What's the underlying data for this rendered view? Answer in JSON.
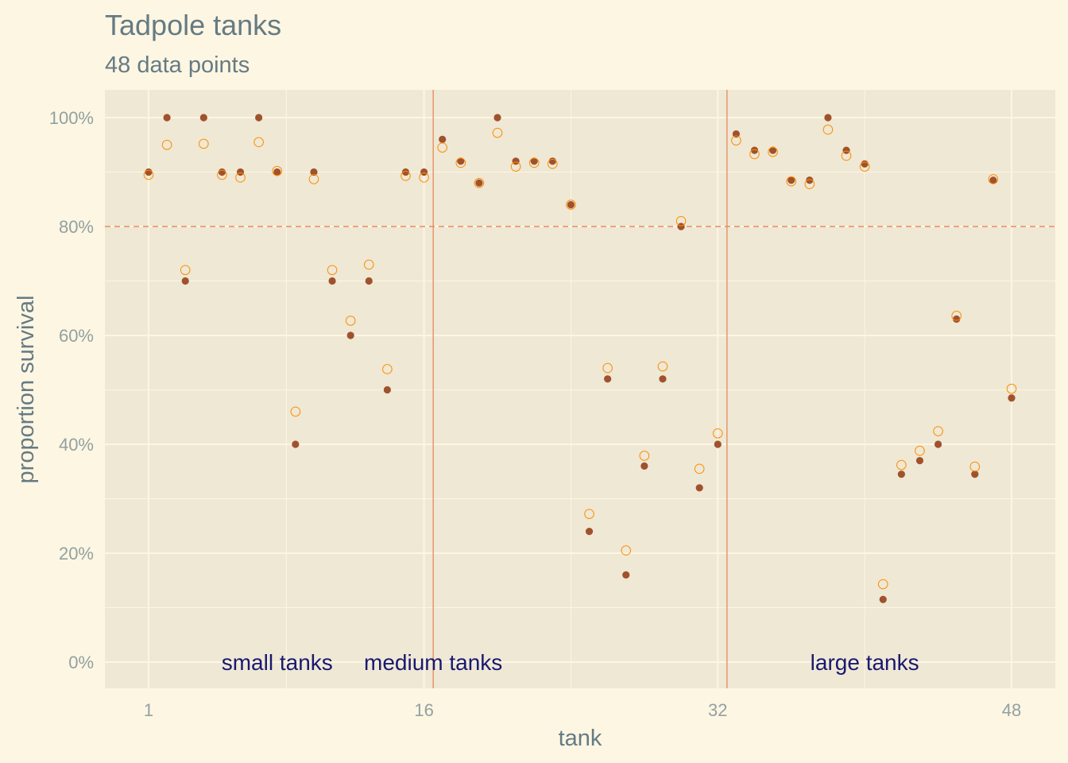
{
  "chart_data": {
    "type": "scatter",
    "title": "Tadpole tanks",
    "subtitle": "48 data points",
    "xlabel": "tank",
    "ylabel": "proportion survival",
    "xlim": [
      1,
      48
    ],
    "ylim": [
      0,
      1
    ],
    "x_ticks": [
      1,
      16,
      32,
      48
    ],
    "x_tick_labels": [
      "1",
      "16",
      "32",
      "48"
    ],
    "y_ticks": [
      0,
      0.2,
      0.4,
      0.6,
      0.8,
      1.0
    ],
    "y_tick_labels": [
      "0%",
      "20%",
      "40%",
      "60%",
      "80%",
      "100%"
    ],
    "grid": true,
    "reference_line": {
      "y": 0.8,
      "style": "dashed",
      "color": "#e8875a"
    },
    "group_dividers": [
      16.5,
      32.5
    ],
    "annotations": [
      {
        "text": "small tanks",
        "x": 8,
        "y": 0
      },
      {
        "text": "medium tanks",
        "x": 16.5,
        "y": 0
      },
      {
        "text": "large tanks",
        "x": 40,
        "y": 0
      }
    ],
    "series": [
      {
        "marker": "filled",
        "color": "#a0522d",
        "values": [
          0.9,
          1.0,
          0.7,
          1.0,
          0.9,
          0.9,
          1.0,
          0.9,
          0.4,
          0.9,
          0.7,
          0.6,
          0.7,
          0.5,
          0.9,
          0.9,
          0.96,
          0.92,
          0.88,
          1.0,
          0.92,
          0.92,
          0.92,
          0.84,
          0.24,
          0.52,
          0.16,
          0.36,
          0.52,
          0.8,
          0.32,
          0.4,
          0.97,
          0.94,
          0.94,
          0.885,
          0.885,
          1.0,
          0.94,
          0.915,
          0.115,
          0.345,
          0.37,
          0.4,
          0.63,
          0.345,
          0.885,
          0.485
        ]
      },
      {
        "marker": "hollow",
        "color": "#ff8c00",
        "values": [
          0.895,
          0.95,
          0.72,
          0.952,
          0.895,
          0.89,
          0.955,
          0.902,
          0.46,
          0.887,
          0.72,
          0.627,
          0.73,
          0.538,
          0.893,
          0.89,
          0.945,
          0.917,
          0.88,
          0.972,
          0.91,
          0.917,
          0.915,
          0.84,
          0.272,
          0.54,
          0.205,
          0.379,
          0.543,
          0.81,
          0.355,
          0.42,
          0.958,
          0.933,
          0.937,
          0.883,
          0.878,
          0.978,
          0.93,
          0.91,
          0.143,
          0.362,
          0.388,
          0.424,
          0.636,
          0.359,
          0.887,
          0.502
        ]
      }
    ]
  }
}
